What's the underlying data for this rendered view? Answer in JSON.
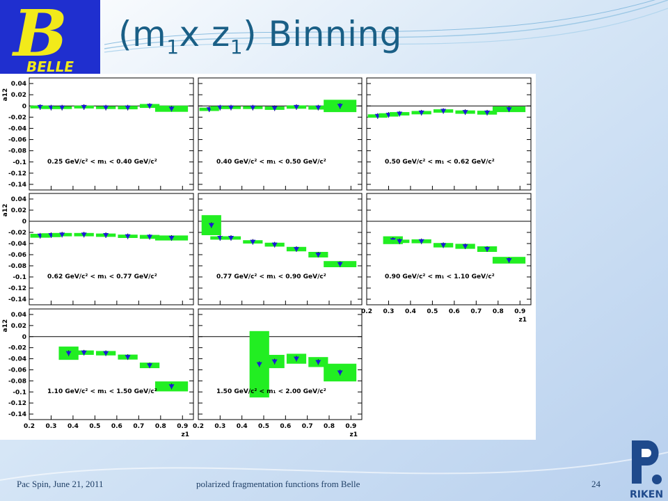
{
  "slide": {
    "title_main": "(m",
    "title_sub1": "1",
    "title_mid": "x z",
    "title_sub2": "1",
    "title_end": ") Binning",
    "logo_letter": "B",
    "logo_text": "BELLE",
    "riken_text": "RIKEN"
  },
  "footer": {
    "left": "Pac Spin, June 21, 2011",
    "center": "polarized fragmentation functions from Belle",
    "page": "24"
  },
  "colors": {
    "box": "#22ee22",
    "marker": "#1a1ad6",
    "title": "#1a5f86",
    "riken_blue": "#1f4a8c",
    "logo_yellow": "#f2ea1a",
    "logo_blue": "#1f2fcf"
  },
  "chart_data": {
    "type": "scatter",
    "ylabel": "a12",
    "xlabel": "z1",
    "xlim": [
      0.2,
      0.95
    ],
    "ylim": [
      -0.15,
      0.05
    ],
    "yticks": [
      "0.04",
      "0.02",
      "0",
      "-0.02",
      "-0.04",
      "-0.06",
      "-0.08",
      "-0.1",
      "-0.12",
      "-0.14"
    ],
    "xticks": [
      "0.2",
      "0.3",
      "0.4",
      "0.5",
      "0.6",
      "0.7",
      "0.8",
      "0.9"
    ],
    "panels": [
      {
        "label": "0.25 GeV/c² < m₁ < 0.40 GeV/c²",
        "points": [
          [
            0.25,
            -0.002
          ],
          [
            0.3,
            -0.003
          ],
          [
            0.35,
            -0.003
          ],
          [
            0.45,
            -0.002
          ],
          [
            0.55,
            -0.003
          ],
          [
            0.65,
            -0.003
          ],
          [
            0.75,
            0.0
          ],
          [
            0.85,
            -0.005
          ]
        ],
        "boxes": [
          [
            0.2,
            0.3,
            0.0
          ],
          [
            0.3,
            0.4,
            0.0
          ],
          [
            0.4,
            0.5,
            0.0
          ],
          [
            0.5,
            0.6,
            -0.001
          ],
          [
            0.6,
            0.7,
            -0.002
          ],
          [
            0.7,
            0.8,
            0.003
          ],
          [
            0.8,
            0.95,
            -0.006
          ]
        ],
        "box_heights": [
          0.005,
          0.005,
          0.005,
          0.005,
          0.005,
          0.006,
          0.007,
          0.011
        ]
      },
      {
        "label": "0.40 GeV/c² < m₁ < 0.50 GeV/c²",
        "points": [
          [
            0.25,
            -0.006
          ],
          [
            0.3,
            -0.003
          ],
          [
            0.35,
            -0.003
          ],
          [
            0.45,
            -0.003
          ],
          [
            0.55,
            -0.004
          ],
          [
            0.65,
            -0.002
          ],
          [
            0.75,
            -0.003
          ],
          [
            0.85,
            0.0
          ]
        ],
        "box_heights": [
          0.006,
          0.005,
          0.005,
          0.005,
          0.006,
          0.006,
          0.007,
          0.022
        ]
      },
      {
        "label": "0.50 GeV/c² < m₁ < 0.62 GeV/c²",
        "points": [
          [
            0.25,
            -0.018
          ],
          [
            0.3,
            -0.016
          ],
          [
            0.35,
            -0.014
          ],
          [
            0.45,
            -0.012
          ],
          [
            0.55,
            -0.009
          ],
          [
            0.65,
            -0.011
          ],
          [
            0.75,
            -0.012
          ],
          [
            0.85,
            -0.006
          ]
        ],
        "box_heights": [
          0.006,
          0.006,
          0.006,
          0.006,
          0.006,
          0.006,
          0.007,
          0.01
        ]
      },
      {
        "label": "0.62 GeV/c² < m₁ < 0.77 GeV/c²",
        "points": [
          [
            0.25,
            -0.026
          ],
          [
            0.3,
            -0.025
          ],
          [
            0.35,
            -0.024
          ],
          [
            0.45,
            -0.024
          ],
          [
            0.55,
            -0.025
          ],
          [
            0.65,
            -0.027
          ],
          [
            0.75,
            -0.028
          ],
          [
            0.85,
            -0.03
          ]
        ],
        "box_heights": [
          0.007,
          0.007,
          0.006,
          0.006,
          0.006,
          0.006,
          0.007,
          0.009
        ]
      },
      {
        "label": "0.77 GeV/c² < m₁ < 0.90 GeV/c²",
        "points": [
          [
            0.26,
            -0.007
          ],
          [
            0.3,
            -0.03
          ],
          [
            0.35,
            -0.03
          ],
          [
            0.45,
            -0.037
          ],
          [
            0.55,
            -0.042
          ],
          [
            0.65,
            -0.05
          ],
          [
            0.75,
            -0.06
          ],
          [
            0.85,
            -0.077
          ]
        ],
        "box_heights": [
          0.036,
          0.006,
          0.006,
          0.006,
          0.007,
          0.008,
          0.01,
          0.011
        ]
      },
      {
        "label": "0.90 GeV/c² < m₁ < 1.10 GeV/c²",
        "points": [
          [
            0.32,
            -0.034
          ],
          [
            0.35,
            -0.036
          ],
          [
            0.45,
            -0.036
          ],
          [
            0.55,
            -0.043
          ],
          [
            0.65,
            -0.045
          ],
          [
            0.75,
            -0.05
          ],
          [
            0.85,
            -0.07
          ]
        ],
        "box_heights": [
          0.014,
          0.006,
          0.007,
          0.008,
          0.009,
          0.01,
          0.012
        ]
      },
      {
        "label": "1.10 GeV/c² < m₁ < 1.50 GeV/c²",
        "points": [
          [
            0.38,
            -0.03
          ],
          [
            0.45,
            -0.029
          ],
          [
            0.55,
            -0.03
          ],
          [
            0.65,
            -0.037
          ],
          [
            0.75,
            -0.052
          ],
          [
            0.85,
            -0.09
          ]
        ],
        "box_heights": [
          0.024,
          0.008,
          0.008,
          0.009,
          0.01,
          0.018
        ]
      },
      {
        "label": "1.50 GeV/c² < m₁ < 2.00 GeV/c²",
        "points": [
          [
            0.48,
            -0.05
          ],
          [
            0.55,
            -0.045
          ],
          [
            0.65,
            -0.04
          ],
          [
            0.75,
            -0.046
          ],
          [
            0.85,
            -0.065
          ]
        ],
        "box_heights": [
          0.12,
          0.024,
          0.018,
          0.018,
          0.032
        ]
      }
    ]
  }
}
